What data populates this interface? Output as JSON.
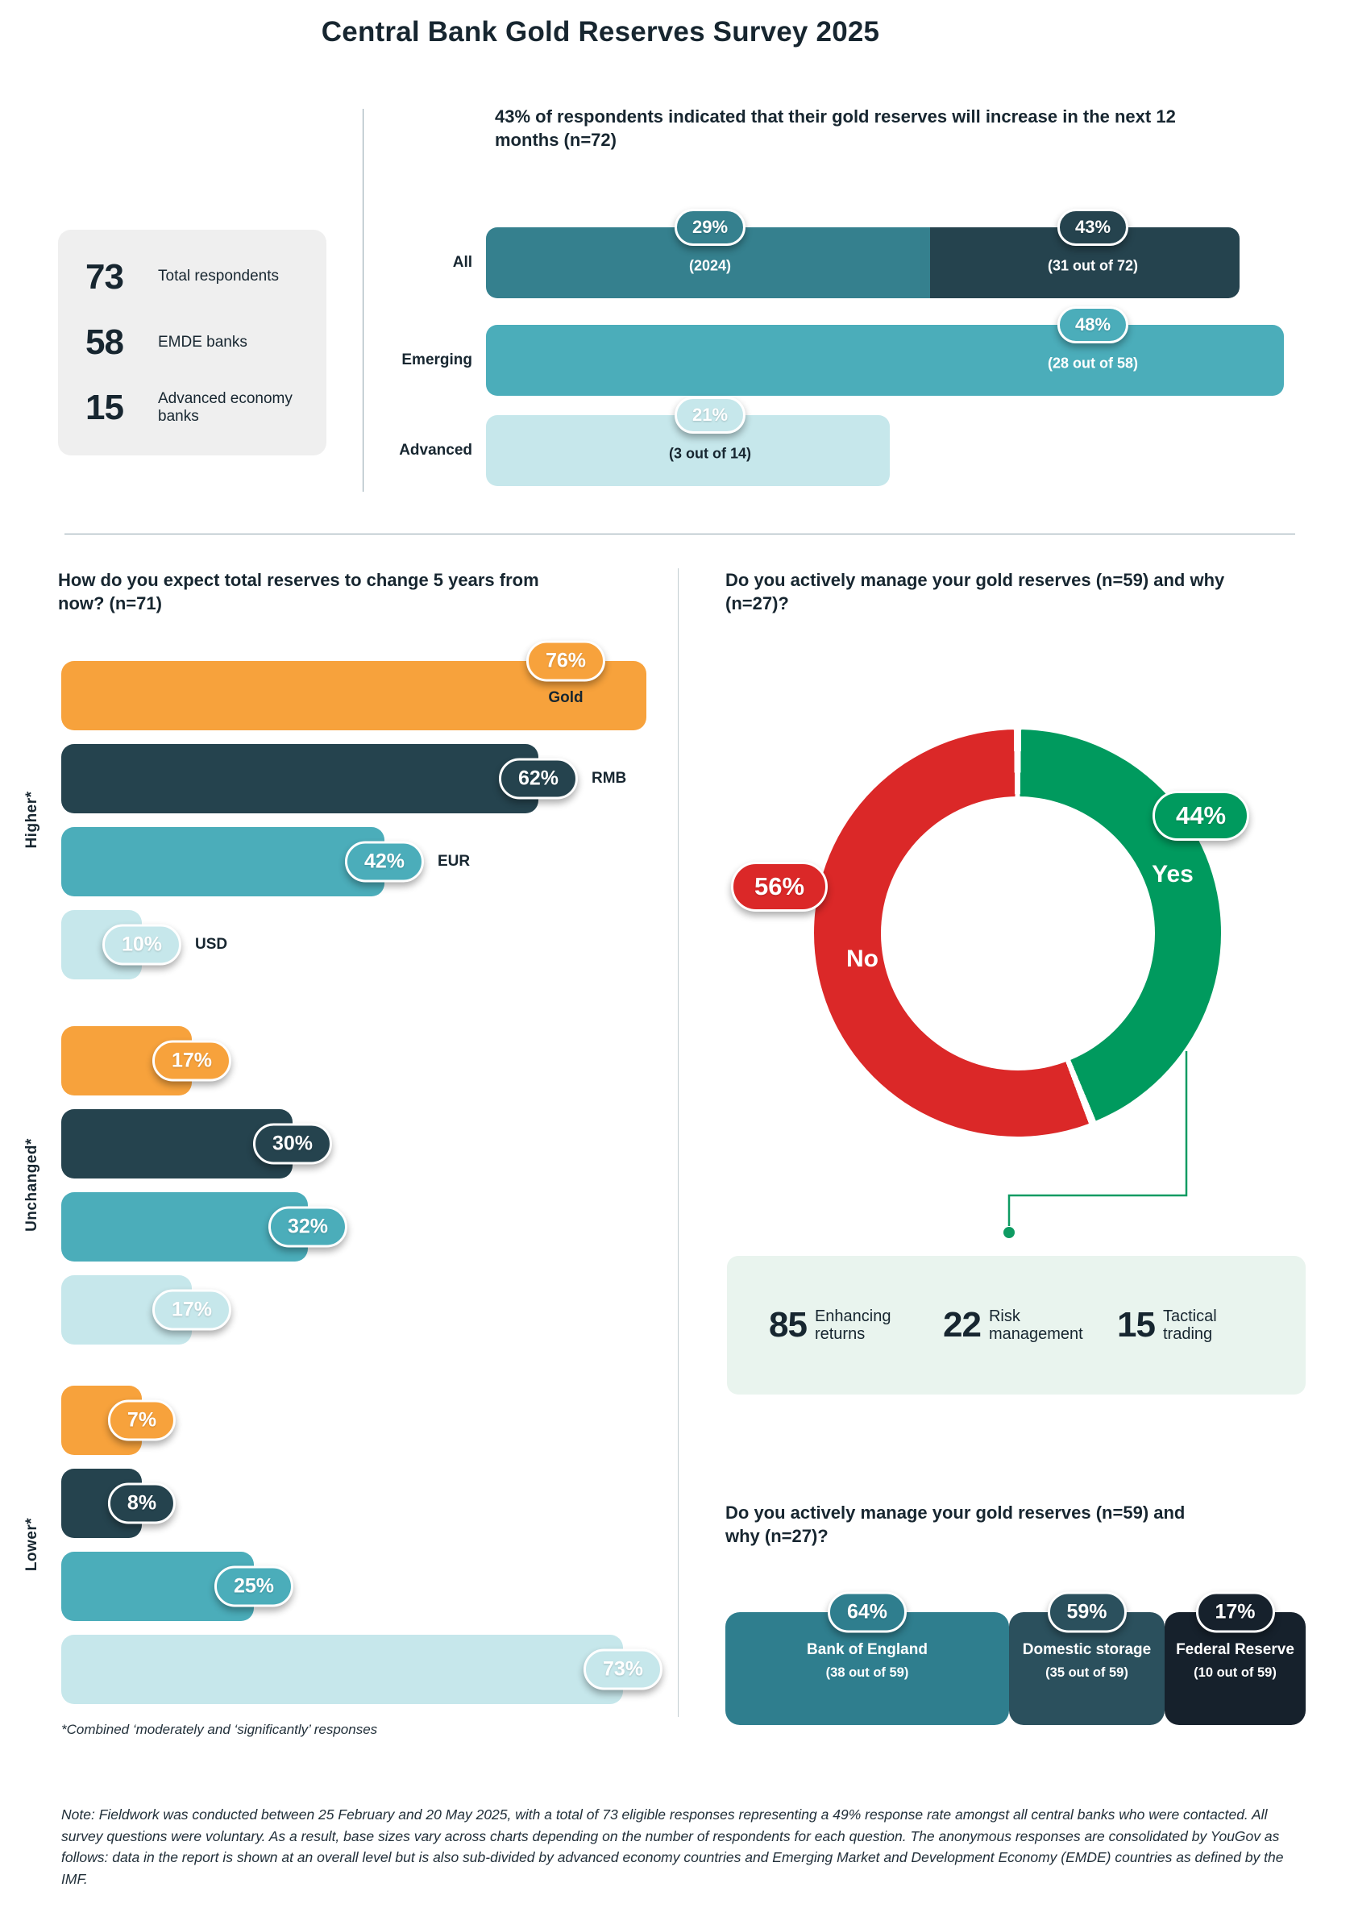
{
  "page_title": "Central Bank Gold Reserves Survey 2025",
  "colors": {
    "teal_dark": "#35808E",
    "slate": "#25434E",
    "teal": "#4BADBA",
    "teal_light": "#C6E7EB",
    "orange": "#F7A23C",
    "red": "#DB2828",
    "green": "#009A5E",
    "green_box": "#E9F4EE",
    "gray_box": "#EFEFEF",
    "boe": "#2F7E8E",
    "domestic": "#2B505D",
    "federal": "#16212C",
    "text_dark": "#172630",
    "connector_green": "#0E9B62"
  },
  "stats_box": {
    "items": [
      {
        "value": "73",
        "label": "Total respondents"
      },
      {
        "value": "58",
        "label": "EMDE banks"
      },
      {
        "value": "15",
        "label": "Advanced economy banks"
      }
    ]
  },
  "chart_data": [
    {
      "id": "increase-12m",
      "type": "bar",
      "title": "43% of respondents indicated that their gold reserves will increase in the next 12 months (n=72)",
      "categories": [
        "All",
        "Emerging",
        "Advanced"
      ],
      "rows": [
        {
          "label": "All",
          "segments": [
            {
              "value": 29,
              "badge": "29%",
              "caption": "(2024)",
              "color": "teal_dark",
              "caption_dark": false
            },
            {
              "value": 43,
              "badge": "43%",
              "caption": "(31 out of 72)",
              "color": "slate",
              "caption_dark": false
            }
          ]
        },
        {
          "label": "Emerging",
          "segments": [
            {
              "value": 48,
              "badge": "48%",
              "caption": "(28 out of 58)",
              "color": "teal",
              "caption_dark": false
            }
          ]
        },
        {
          "label": "Advanced",
          "segments": [
            {
              "value": 21,
              "badge": "21%",
              "caption": "(3 out of 14)",
              "color": "teal_light",
              "caption_dark": true
            }
          ]
        }
      ]
    },
    {
      "id": "five-year-expectation",
      "type": "bar",
      "title": "How do you expect total reserves to change 5 years from now? (n=71)",
      "assets": [
        "Gold",
        "RMB",
        "EUR",
        "USD"
      ],
      "groups": [
        {
          "label": "Higher*",
          "bars": [
            {
              "asset": "Gold",
              "value": 76,
              "badge": "76%",
              "color": "orange",
              "badge_top": true
            },
            {
              "asset": "RMB",
              "value": 62,
              "badge": "62%",
              "color": "slate"
            },
            {
              "asset": "EUR",
              "value": 42,
              "badge": "42%",
              "color": "teal"
            },
            {
              "asset": "USD",
              "value": 10,
              "badge": "10%",
              "color": "teal_light"
            }
          ]
        },
        {
          "label": "Unchanged*",
          "bars": [
            {
              "value": 17,
              "badge": "17%",
              "color": "orange"
            },
            {
              "value": 30,
              "badge": "30%",
              "color": "slate"
            },
            {
              "value": 32,
              "badge": "32%",
              "color": "teal"
            },
            {
              "value": 17,
              "badge": "17%",
              "color": "teal_light"
            }
          ]
        },
        {
          "label": "Lower*",
          "bars": [
            {
              "value": 7,
              "badge": "7%",
              "color": "orange"
            },
            {
              "value": 8,
              "badge": "8%",
              "color": "slate"
            },
            {
              "value": 25,
              "badge": "25%",
              "color": "teal"
            },
            {
              "value": 73,
              "badge": "73%",
              "color": "teal_light"
            }
          ]
        }
      ],
      "footnote": "*Combined ‘moderately and ‘significantly’ responses"
    },
    {
      "id": "actively-manage-donut",
      "type": "pie",
      "title": "Do you actively manage your gold reserves (n=59) and why (n=27)?",
      "slices": [
        {
          "label": "Yes",
          "value": 44,
          "badge": "44%",
          "color": "green"
        },
        {
          "label": "No",
          "value": 56,
          "badge": "56%",
          "color": "red"
        }
      ],
      "callout": {
        "items": [
          {
            "value": "85",
            "label": "Enhancing returns"
          },
          {
            "value": "22",
            "label": "Risk management"
          },
          {
            "value": "15",
            "label": "Tactical trading"
          }
        ]
      }
    },
    {
      "id": "storage-location",
      "type": "bar",
      "title": "Do you actively manage your gold reserves (n=59) and why (n=27)?",
      "segments": [
        {
          "label": "Bank of England",
          "caption": "(38 out of 59)",
          "badge": "64%",
          "value": 64,
          "color": "boe"
        },
        {
          "label": "Domestic storage",
          "caption": "(35 out of 59)",
          "badge": "59%",
          "value": 59,
          "color": "domestic"
        },
        {
          "label": "Federal Reserve",
          "caption": "(10 out of 59)",
          "badge": "17%",
          "value": 17,
          "color": "federal"
        }
      ]
    }
  ],
  "note": "Note: Fieldwork was conducted between 25 February and 20 May 2025, with a total of 73 eligible responses representing a 49% response rate amongst all central banks who were contacted. All survey questions were voluntary. As a result, base sizes vary across charts depending on the number of respondents for each question. The anonymous responses are consolidated by YouGov as follows: data in the report is shown at an overall level but is also sub-divided by advanced economy countries and Emerging Market and Development Economy (EMDE) countries as defined by the IMF."
}
